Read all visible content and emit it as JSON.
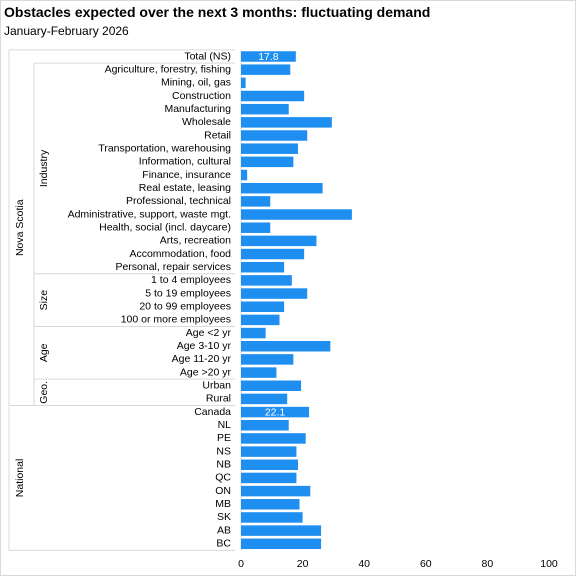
{
  "chart_data": {
    "type": "bar",
    "orientation": "horizontal",
    "title": "Obstacles expected over the next 3 months:  fluctuating demand",
    "subtitle": "January-February  2026",
    "xlim": [
      0,
      100
    ],
    "xticks": [
      "0",
      "20",
      "40",
      "60",
      "80",
      "100"
    ],
    "bar_color": "#1e8ff0",
    "grid": false,
    "outer_groups": [
      {
        "label": "Nova Scotia",
        "start": 0,
        "end": 27
      },
      {
        "label": "National",
        "start": 27,
        "end": 38
      }
    ],
    "inner_groups": [
      {
        "label": "Industry",
        "start": 1,
        "end": 17
      },
      {
        "label": "Size",
        "start": 17,
        "end": 21
      },
      {
        "label": "Age",
        "start": 21,
        "end": 25
      },
      {
        "label": "Geo.",
        "start": 25,
        "end": 27
      }
    ],
    "categories": [
      "Total (NS)",
      "Agriculture, forestry, fishing",
      "Mining, oil, gas",
      "Construction",
      "Manufacturing",
      "Wholesale",
      "Retail",
      "Transportation, warehousing",
      "Information, cultural",
      "Finance, insurance",
      "Real estate, leasing",
      "Professional, technical",
      "Administrative, support, waste mgt.",
      "Health, social (incl. daycare)",
      "Arts, recreation",
      "Accommodation, food",
      "Personal, repair services",
      "1 to 4 employees",
      "5 to 19 employees",
      "20 to 99 employees",
      "100 or more employees",
      "Age <2 yr",
      "Age 3-10 yr",
      "Age 11-20 yr",
      "Age >20 yr",
      "Urban",
      "Rural",
      "Canada",
      "NL",
      "PE",
      "NS",
      "NB",
      "QC",
      "ON",
      "MB",
      "SK",
      "AB",
      "BC"
    ],
    "values": [
      17.8,
      16.0,
      1.5,
      20.5,
      15.5,
      29.5,
      21.5,
      18.5,
      17.0,
      2.0,
      26.5,
      9.5,
      36.0,
      9.5,
      24.5,
      20.5,
      14.0,
      16.5,
      21.5,
      14.0,
      12.5,
      8.0,
      29.0,
      17.0,
      11.5,
      19.5,
      15.0,
      22.1,
      15.5,
      21.0,
      18.0,
      18.5,
      18.0,
      22.5,
      19.0,
      20.0,
      26.0,
      26.0
    ],
    "data_labels": [
      {
        "index": 0,
        "text": "17.8"
      },
      {
        "index": 27,
        "text": "22.1"
      }
    ]
  }
}
